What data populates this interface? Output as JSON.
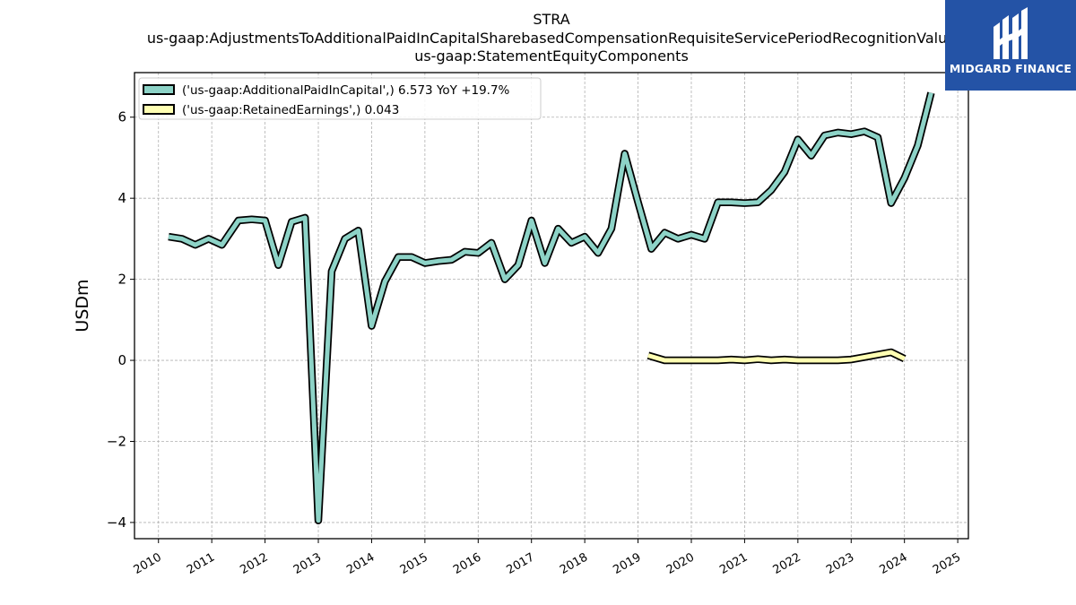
{
  "chart_data": {
    "type": "line",
    "title_lines": [
      "STRA",
      "us-gaap:AdjustmentsToAdditionalPaidInCapitalSharebasedCompensationRequisiteServicePeriodRecognitionValue",
      "us-gaap:StatementEquityComponents"
    ],
    "ylabel": "USDm",
    "xlabel": "",
    "ylim": [
      -4.4,
      7.1
    ],
    "xlim": [
      2009.55,
      2025.2
    ],
    "yticks": [
      -4,
      -2,
      0,
      2,
      4,
      6
    ],
    "ytick_labels": [
      "−4",
      "−2",
      "0",
      "2",
      "4",
      "6"
    ],
    "xticks": [
      2010,
      2011,
      2012,
      2013,
      2014,
      2015,
      2016,
      2017,
      2018,
      2019,
      2020,
      2021,
      2022,
      2023,
      2024,
      2025
    ],
    "xtick_labels": [
      "2010",
      "2011",
      "2012",
      "2013",
      "2014",
      "2015",
      "2016",
      "2017",
      "2018",
      "2019",
      "2020",
      "2021",
      "2022",
      "2023",
      "2024",
      "2025"
    ],
    "grid": true,
    "legend_position": "top-left",
    "series": [
      {
        "name": "('us-gaap:AdditionalPaidInCapital',) 6.573 YoY +19.7%",
        "color": "#8dd3c7",
        "x": [
          2010.19,
          2010.44,
          2010.69,
          2010.94,
          2011.19,
          2011.5,
          2011.75,
          2012.0,
          2012.25,
          2012.5,
          2012.75,
          2013.0,
          2013.25,
          2013.5,
          2013.75,
          2014.0,
          2014.25,
          2014.5,
          2014.75,
          2015.0,
          2015.25,
          2015.5,
          2015.75,
          2016.0,
          2016.25,
          2016.5,
          2016.75,
          2017.0,
          2017.25,
          2017.5,
          2017.75,
          2018.0,
          2018.25,
          2018.5,
          2018.75,
          2019.0,
          2019.25,
          2019.5,
          2019.75,
          2020.0,
          2020.25,
          2020.5,
          2020.75,
          2021.0,
          2021.25,
          2021.5,
          2021.75,
          2022.0,
          2022.25,
          2022.5,
          2022.75,
          2023.0,
          2023.25,
          2023.5,
          2023.75,
          2024.0,
          2024.25,
          2024.5
        ],
        "values": [
          3.05,
          3.0,
          2.85,
          3.0,
          2.85,
          3.45,
          3.48,
          3.45,
          2.35,
          3.42,
          3.52,
          -3.95,
          2.2,
          3.0,
          3.2,
          0.85,
          1.95,
          2.55,
          2.55,
          2.4,
          2.45,
          2.48,
          2.68,
          2.65,
          2.9,
          2.0,
          2.35,
          3.45,
          2.4,
          3.25,
          2.9,
          3.05,
          2.65,
          3.25,
          5.1,
          3.9,
          2.75,
          3.15,
          3.0,
          3.1,
          3.0,
          3.9,
          3.9,
          3.88,
          3.9,
          4.2,
          4.65,
          5.45,
          5.05,
          5.55,
          5.62,
          5.58,
          5.65,
          5.5,
          3.88,
          4.5,
          5.3,
          6.6
        ]
      },
      {
        "name": "('us-gaap:RetainedEarnings',) 0.043",
        "color": "#ffffb3",
        "x": [
          2019.19,
          2019.5,
          2019.75,
          2020.0,
          2020.25,
          2020.5,
          2020.75,
          2021.0,
          2021.25,
          2021.5,
          2021.75,
          2022.0,
          2022.25,
          2022.5,
          2022.75,
          2023.0,
          2023.25,
          2023.5,
          2023.75,
          2024.0
        ],
        "values": [
          0.12,
          0.0,
          0.0,
          0.0,
          0.0,
          0.0,
          0.02,
          0.0,
          0.03,
          0.0,
          0.02,
          0.0,
          0.0,
          0.0,
          0.0,
          0.02,
          0.08,
          0.14,
          0.2,
          0.04
        ]
      }
    ]
  },
  "brand": {
    "name": "MIDGARD FINANCE",
    "background": "#2453a6"
  }
}
